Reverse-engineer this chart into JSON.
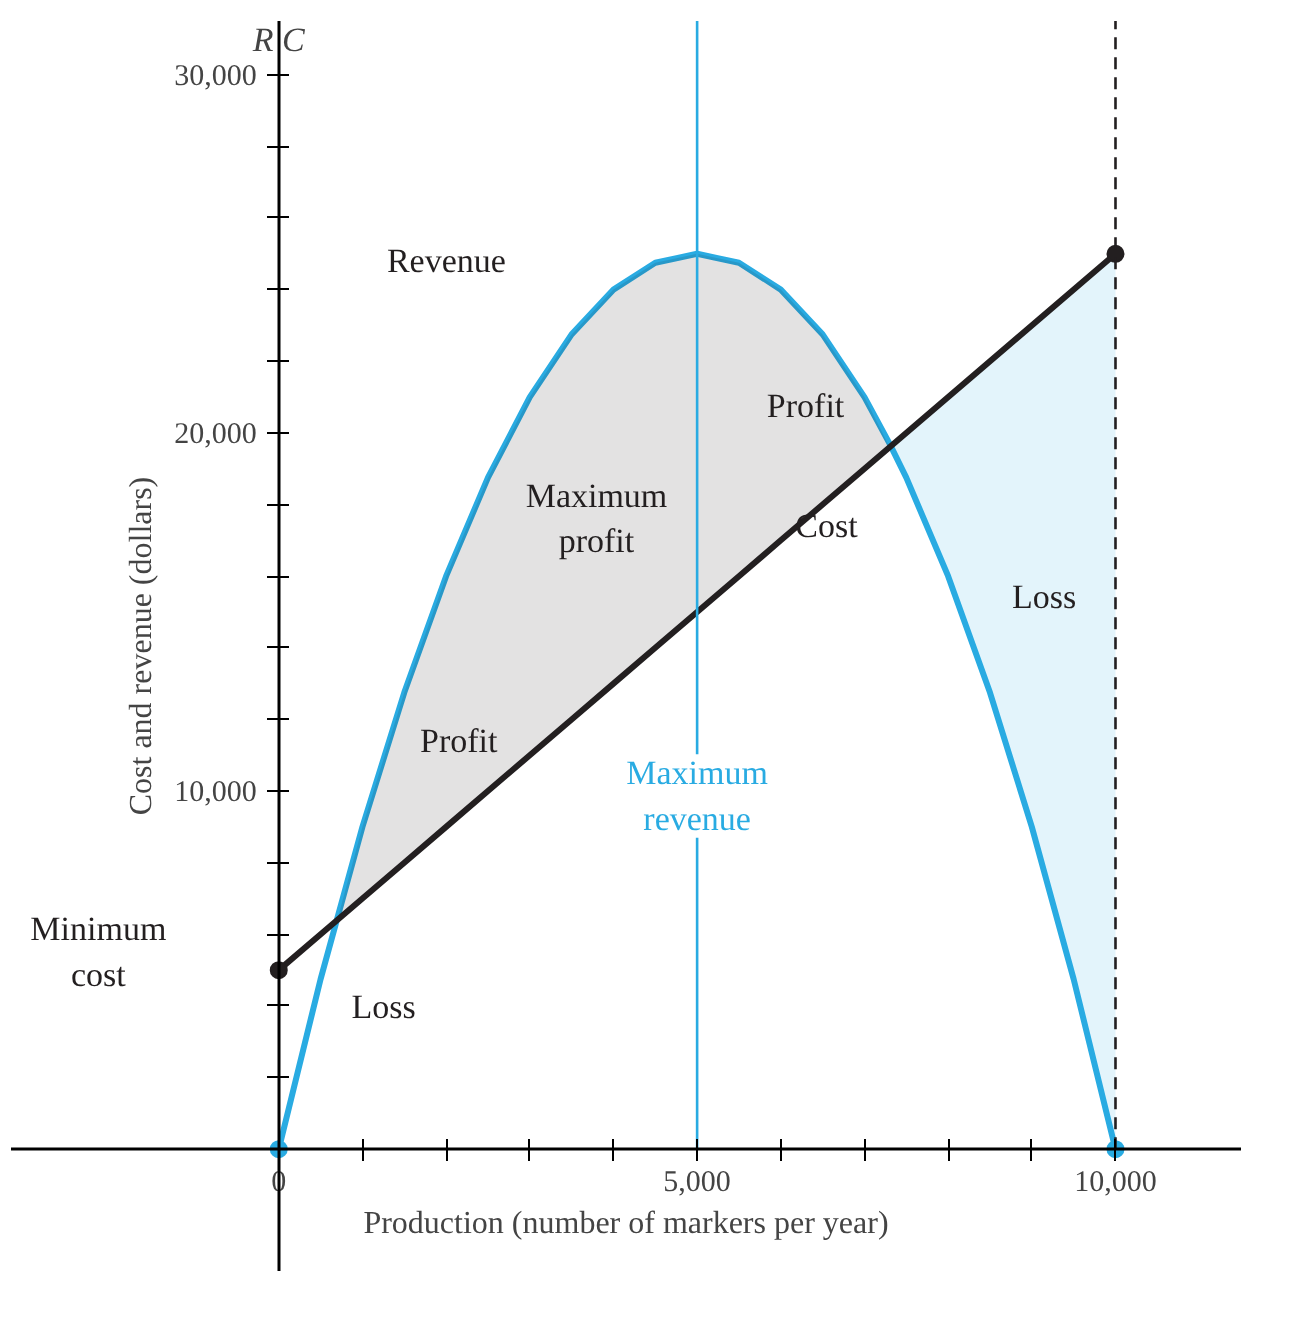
{
  "chart_data": {
    "type": "line",
    "xlabel": "Production (number of markers per year)",
    "ylabel": "Cost and revenue (dollars)",
    "xlim": [
      -3200,
      11500
    ],
    "ylim": [
      -3400,
      31500
    ],
    "xticks": [
      {
        "value": 0,
        "label": "0"
      },
      {
        "value": 1000,
        "label": null
      },
      {
        "value": 2000,
        "label": null
      },
      {
        "value": 3000,
        "label": null
      },
      {
        "value": 4000,
        "label": null
      },
      {
        "value": 5000,
        "label": "5,000"
      },
      {
        "value": 6000,
        "label": null
      },
      {
        "value": 7000,
        "label": null
      },
      {
        "value": 8000,
        "label": null
      },
      {
        "value": 9000,
        "label": null
      },
      {
        "value": 10000,
        "label": "10,000"
      }
    ],
    "yticks": [
      {
        "value": 2000,
        "label": null
      },
      {
        "value": 4000,
        "label": null
      },
      {
        "value": 6000,
        "label": null
      },
      {
        "value": 8000,
        "label": null
      },
      {
        "value": 10000,
        "label": "10,000"
      },
      {
        "value": 12000,
        "label": null
      },
      {
        "value": 14000,
        "label": null
      },
      {
        "value": 16000,
        "label": null
      },
      {
        "value": 18000,
        "label": null
      },
      {
        "value": 20000,
        "label": "20,000"
      },
      {
        "value": 22000,
        "label": null
      },
      {
        "value": 24000,
        "label": null
      },
      {
        "value": 26000,
        "label": null
      },
      {
        "value": 28000,
        "label": null
      },
      {
        "value": 30000,
        "label": "30,000"
      }
    ],
    "grid": false,
    "series": [
      {
        "color": "#29abe2",
        "x": [
          0,
          500,
          1000,
          1500,
          2000,
          2500,
          3000,
          3500,
          4000,
          4500,
          5000,
          5500,
          6000,
          6500,
          7000,
          7300,
          7500,
          8000,
          8500,
          9000,
          9500,
          10000
        ],
        "values": [
          0,
          4750,
          9000,
          12750,
          16000,
          18750,
          21000,
          22750,
          24000,
          24750,
          25000,
          24750,
          24000,
          22750,
          21000,
          19700,
          18750,
          16000,
          12750,
          9000,
          4750,
          0
        ],
        "lower": [
          null,
          null,
          null,
          null,
          null,
          null,
          null,
          null,
          null,
          null,
          null,
          null,
          null,
          null,
          null,
          19700,
          18750,
          16000,
          12750,
          9000,
          4750,
          0
        ],
        "upper": [
          null,
          null,
          null,
          null,
          null,
          null,
          null,
          null,
          null,
          null,
          null,
          null,
          null,
          null,
          null,
          19700,
          20000,
          21000,
          22000,
          23000,
          24000,
          25000
        ]
      },
      {
        "color": "#231f20",
        "x": [
          0,
          700,
          1000,
          1500,
          2000,
          2500,
          3000,
          3500,
          4000,
          4500,
          5000,
          5500,
          6000,
          6500,
          7000,
          7300,
          10000
        ],
        "values": [
          5000,
          6400,
          7000,
          8000,
          9000,
          10000,
          11000,
          12000,
          13000,
          14000,
          15000,
          16000,
          17000,
          18000,
          19000,
          19600,
          25000
        ],
        "lower": [
          null,
          6400,
          7000,
          8000,
          9000,
          10000,
          11000,
          12000,
          13000,
          14000,
          15000,
          16000,
          17000,
          18000,
          19000,
          19600,
          null
        ],
        "upper": [
          null,
          6400,
          9000,
          12750,
          16000,
          18750,
          21000,
          22750,
          24000,
          24750,
          25000,
          24750,
          24000,
          22750,
          21000,
          19600,
          null
        ]
      },
      {
        "type": "scatter",
        "x": [
          0,
          0,
          10000,
          10000
        ],
        "values": [
          0,
          5000,
          25000,
          0
        ],
        "colors": [
          "#29abe2",
          "#231f20",
          "#231f20",
          "#29abe2"
        ]
      }
    ],
    "ref_lines": [
      {
        "axis": "x",
        "value": 5000,
        "label": "Maximum\nrevenue",
        "color": "#29abe2"
      },
      {
        "axis": "x",
        "value": 10000,
        "color": "#231f20",
        "line_style": "dashed"
      }
    ],
    "annotations": [
      "R C",
      "Revenue",
      "Cost",
      "Profit",
      "Maximum\nprofit",
      "Profit",
      "Loss",
      "Loss",
      "Minimum\ncost"
    ]
  }
}
